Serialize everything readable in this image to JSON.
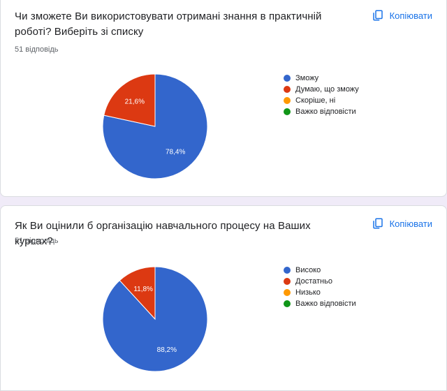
{
  "copy_label": "Копіювати",
  "copy_icon": "copy-icon",
  "colors": {
    "blue": "#3366cc",
    "red": "#dc3912",
    "orange": "#ff9900",
    "green": "#109618",
    "accent": "#1a73e8"
  },
  "questions": [
    {
      "title": "Чи зможете Ви використовувати отримані знання в практичній роботі? Виберіть зі списку",
      "responses": "51 відповідь"
    },
    {
      "title": "Як Ви оцінили б організацію навчального процесу на Ваших курсах?",
      "responses": "51 відповідь"
    }
  ],
  "chart_data": [
    {
      "type": "pie",
      "categories": [
        "Зможу",
        "Думаю, що зможу",
        "Скоріше, ні",
        "Важко відповісти"
      ],
      "values": [
        78.4,
        21.6,
        0,
        0
      ],
      "labels": [
        "78,4%",
        "21,6%",
        "",
        ""
      ],
      "colors": [
        "#3366cc",
        "#dc3912",
        "#ff9900",
        "#109618"
      ],
      "legend": "right"
    },
    {
      "type": "pie",
      "categories": [
        "Високо",
        "Достатньо",
        "Низько",
        "Важко відповісти"
      ],
      "values": [
        88.2,
        11.8,
        0,
        0
      ],
      "labels": [
        "88,2%",
        "11,8%",
        "",
        ""
      ],
      "colors": [
        "#3366cc",
        "#dc3912",
        "#ff9900",
        "#109618"
      ],
      "legend": "right"
    }
  ]
}
